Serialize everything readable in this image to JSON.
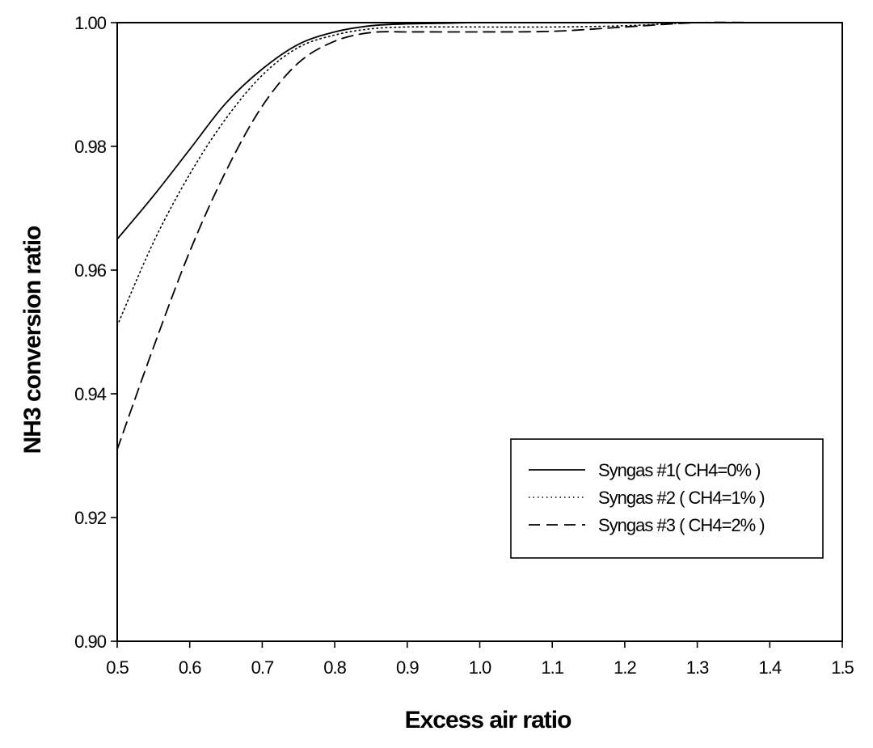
{
  "chart_data": {
    "type": "line",
    "title": "",
    "xlabel": "Excess air ratio",
    "ylabel": "NH3 conversion ratio",
    "xlim": [
      0.5,
      1.5
    ],
    "ylim": [
      0.9,
      1.0
    ],
    "xticks": [
      "0.5",
      "0.6",
      "0.7",
      "0.8",
      "0.9",
      "1.0",
      "1.1",
      "1.2",
      "1.3",
      "1.4",
      "1.5"
    ],
    "yticks": [
      "0.90",
      "0.92",
      "0.94",
      "0.96",
      "0.98",
      "1.00"
    ],
    "grid": false,
    "legend_position": "lower-right",
    "series": [
      {
        "name": "Syngas #1( CH4=0% )",
        "line_style": "solid",
        "x": [
          0.5,
          0.55,
          0.6,
          0.65,
          0.7,
          0.75,
          0.8,
          0.85,
          0.9,
          0.95,
          1.0,
          1.1,
          1.2,
          1.3,
          1.4,
          1.5
        ],
        "y": [
          0.965,
          0.972,
          0.9795,
          0.987,
          0.9925,
          0.9965,
          0.9985,
          0.9995,
          0.9998,
          0.9999,
          1.0,
          1.0,
          1.0,
          1.0,
          1.0,
          1.0
        ]
      },
      {
        "name": "Syngas #2 ( CH4=1% )",
        "line_style": "dotted",
        "x": [
          0.5,
          0.55,
          0.6,
          0.65,
          0.7,
          0.75,
          0.8,
          0.85,
          0.9,
          0.95,
          1.0,
          1.1,
          1.2,
          1.3,
          1.4,
          1.5
        ],
        "y": [
          0.951,
          0.9645,
          0.9755,
          0.9845,
          0.9915,
          0.996,
          0.998,
          0.999,
          0.9993,
          0.9993,
          0.9993,
          0.9993,
          0.9995,
          1.0,
          1.0,
          1.0
        ]
      },
      {
        "name": "Syngas #3 ( CH4=2% )",
        "line_style": "dashed",
        "x": [
          0.5,
          0.55,
          0.6,
          0.65,
          0.7,
          0.75,
          0.8,
          0.85,
          0.9,
          0.95,
          1.0,
          1.1,
          1.2,
          1.3,
          1.4,
          1.5
        ],
        "y": [
          0.931,
          0.9475,
          0.963,
          0.976,
          0.9865,
          0.9935,
          0.997,
          0.9984,
          0.9985,
          0.9985,
          0.9985,
          0.9986,
          0.9993,
          1.0,
          1.0,
          1.0
        ]
      }
    ]
  }
}
